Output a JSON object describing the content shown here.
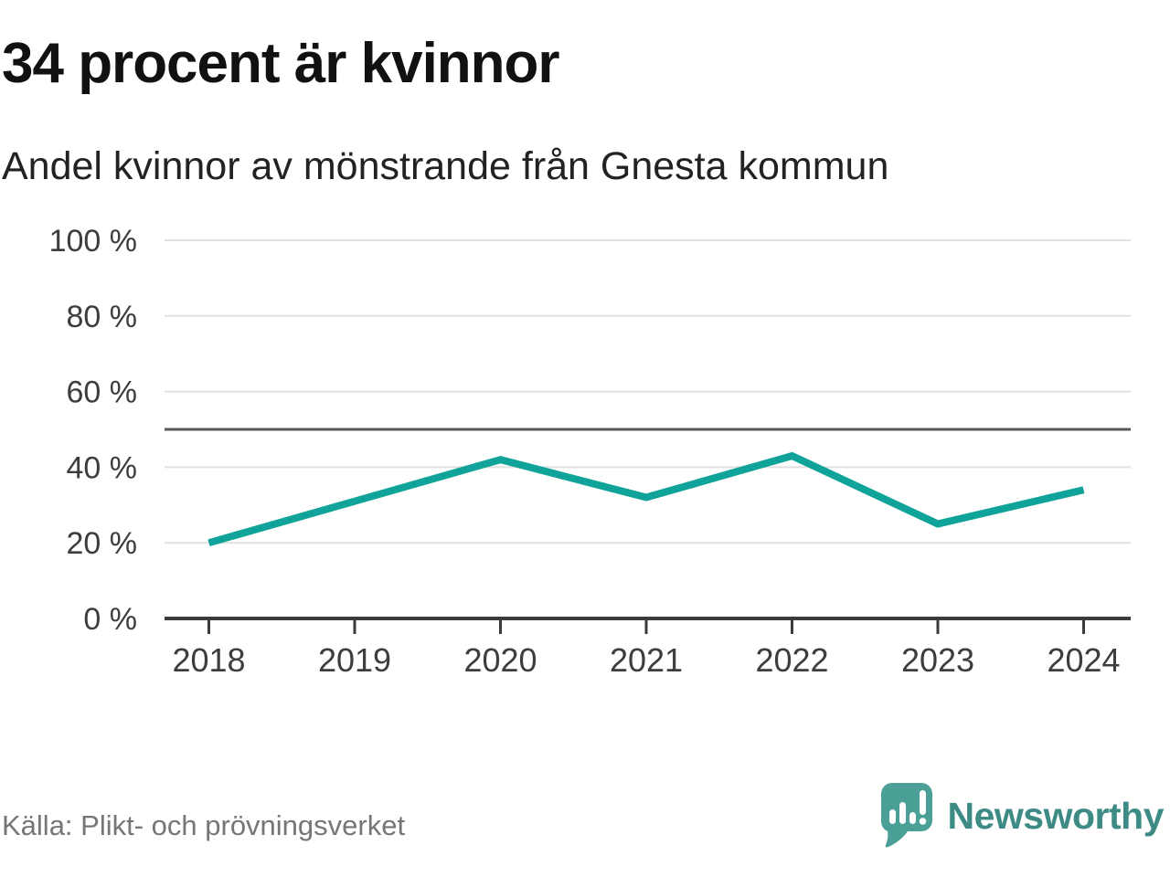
{
  "header": {
    "title": "34 procent är kvinnor",
    "subtitle": "Andel kvinnor av mönstrande från Gnesta kommun"
  },
  "footer": {
    "source": "Källa: Plikt- och prövningsverket",
    "brand_name": "Newsworthy"
  },
  "colors": {
    "line": "#10a39a",
    "grid": "#e1e1e1",
    "reference": "#58585b",
    "axis": "#3b3b3b",
    "tick_label": "#3d3d3d",
    "logo_bubble": "#4a9f96",
    "logo_text": "#3e8b85"
  },
  "chart_data": {
    "type": "line",
    "title": "34 procent är kvinnor",
    "subtitle": "Andel kvinnor av mönstrande från Gnesta kommun",
    "x": [
      "2018",
      "2019",
      "2020",
      "2021",
      "2022",
      "2023",
      "2024"
    ],
    "series": [
      {
        "name": "Andel kvinnor av mönstrande, Gnesta kommun",
        "color": "#10a39a",
        "values": [
          20,
          31,
          42,
          32,
          43,
          25,
          34
        ]
      }
    ],
    "unit": "%",
    "ylim": [
      0,
      100
    ],
    "yticks": [
      0,
      20,
      40,
      60,
      80,
      100
    ],
    "ytick_labels": [
      "0 %",
      "20 %",
      "40 %",
      "60 %",
      "80 %",
      "100 %"
    ],
    "reference_line_y": 50,
    "grid": "horizontal",
    "legend": "none",
    "source": "Plikt- och prövningsverket"
  }
}
